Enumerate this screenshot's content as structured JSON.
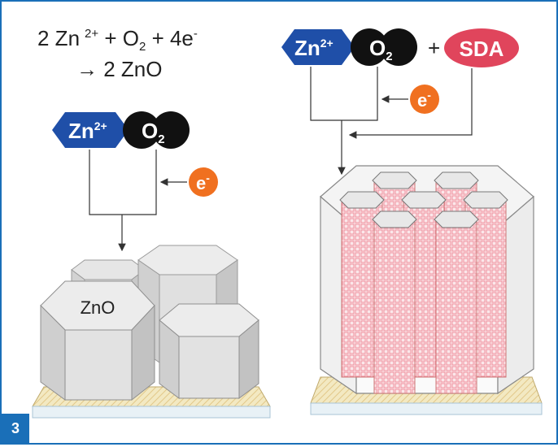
{
  "figure": {
    "number": "3",
    "equation": {
      "line1_a": "2 Zn",
      "line1_charge": "2+",
      "line1_b": " + O",
      "line1_sub": "2",
      "line1_c": " + 4e",
      "line1_minus": "-",
      "line2": "→ 2 ZnO"
    },
    "left": {
      "zn_label": "Zn",
      "zn_charge": "2+",
      "o2_label": "O",
      "o2_sub": "2",
      "electron_label": "e",
      "electron_charge": "-",
      "product_label": "ZnO"
    },
    "right": {
      "zn_label": "Zn",
      "zn_charge": "2+",
      "o2_label": "O",
      "o2_sub": "2",
      "plus_sign": "+",
      "sda_label": "SDA",
      "electron_label": "e",
      "electron_charge": "-"
    }
  },
  "colors": {
    "border": "#1a6fb8",
    "zn_ion": "#1f4fa8",
    "o2": "#111111",
    "electron": "#f07020",
    "sda": "#e0455c",
    "crystal_top": "#e6e6e6",
    "crystal_side": "#d2d2d2",
    "substrate": "#f3e9c2",
    "mesh": "#f1a3ad"
  }
}
